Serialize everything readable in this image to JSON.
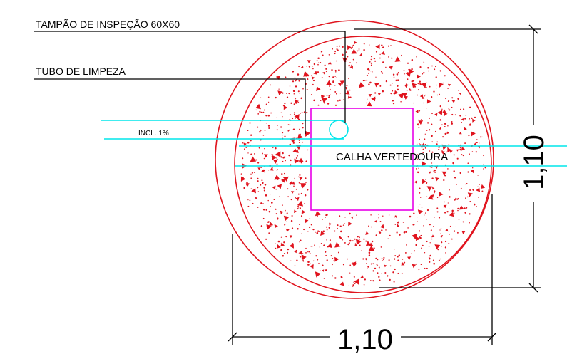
{
  "labels": {
    "inspection_cover": "TAMPÃO DE INSPEÇÃO 60X60",
    "cleaning_pipe": "TUBO DE LIMPEZA",
    "slope": "INCL. 1%",
    "weir_channel": "CALHA VERTEDOURA"
  },
  "dimensions": {
    "width": "1,10",
    "height": "1,10"
  },
  "colors": {
    "outline": "#e0141e",
    "stipple": "#e0141e",
    "pipe": "#00e5ea",
    "cover": "#e800e8",
    "text": "#000000",
    "dimension": "#000000"
  }
}
